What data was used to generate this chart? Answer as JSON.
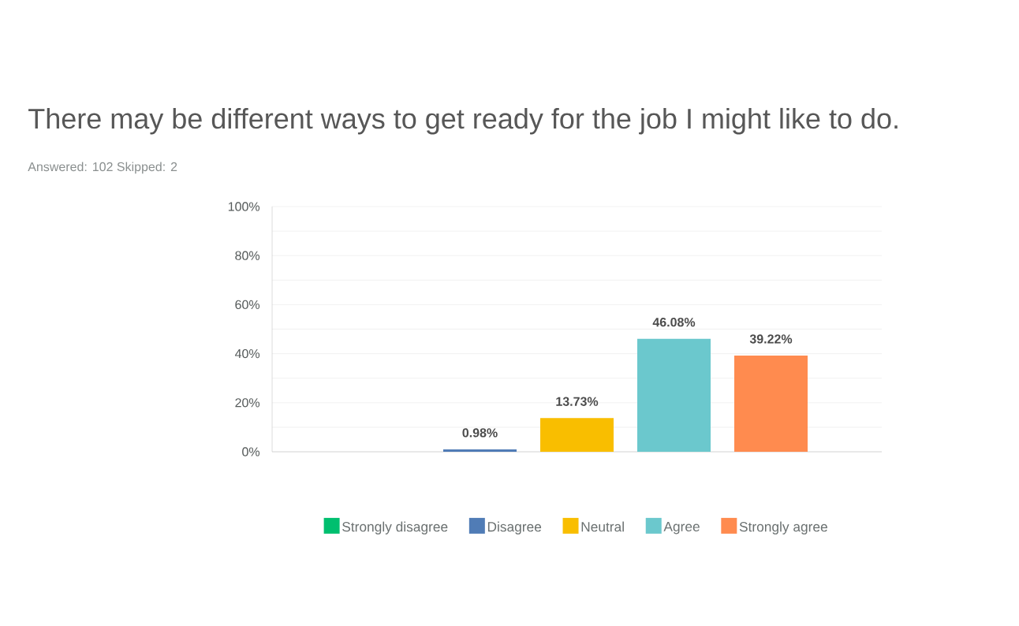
{
  "chart_data": {
    "type": "bar",
    "title": "There may be different ways to get ready for the job I might like to do.",
    "subtitle": "Answered: 102  Skipped: 2",
    "categories": [
      null
    ],
    "series": [
      {
        "name": "Strongly disagree",
        "color": "#00bf6f",
        "values": [
          0
        ],
        "value_labels": [
          null
        ]
      },
      {
        "name": "Disagree",
        "color": "#507cb6",
        "values": [
          0.98
        ],
        "value_labels": [
          "0.98%"
        ]
      },
      {
        "name": "Neutral",
        "color": "#f9be00",
        "values": [
          13.73
        ],
        "value_labels": [
          "13.73%"
        ]
      },
      {
        "name": "Agree",
        "color": "#6bc8cd",
        "values": [
          46.08
        ],
        "value_labels": [
          "46.08%"
        ]
      },
      {
        "name": "Strongly agree",
        "color": "#ff8b4f",
        "values": [
          39.22
        ],
        "value_labels": [
          "39.22%"
        ]
      }
    ],
    "ylim": [
      0,
      100
    ],
    "yticks": [
      {
        "value": 0,
        "label": "0%"
      },
      {
        "value": 10,
        "label": null
      },
      {
        "value": 20,
        "label": "20%"
      },
      {
        "value": 30,
        "label": null
      },
      {
        "value": 40,
        "label": "40%"
      },
      {
        "value": 50,
        "label": null
      },
      {
        "value": 60,
        "label": "60%"
      },
      {
        "value": 70,
        "label": null
      },
      {
        "value": 80,
        "label": "80%"
      },
      {
        "value": 90,
        "label": null
      },
      {
        "value": 100,
        "label": "100%"
      }
    ],
    "grid": "y",
    "legend": "bottom"
  }
}
